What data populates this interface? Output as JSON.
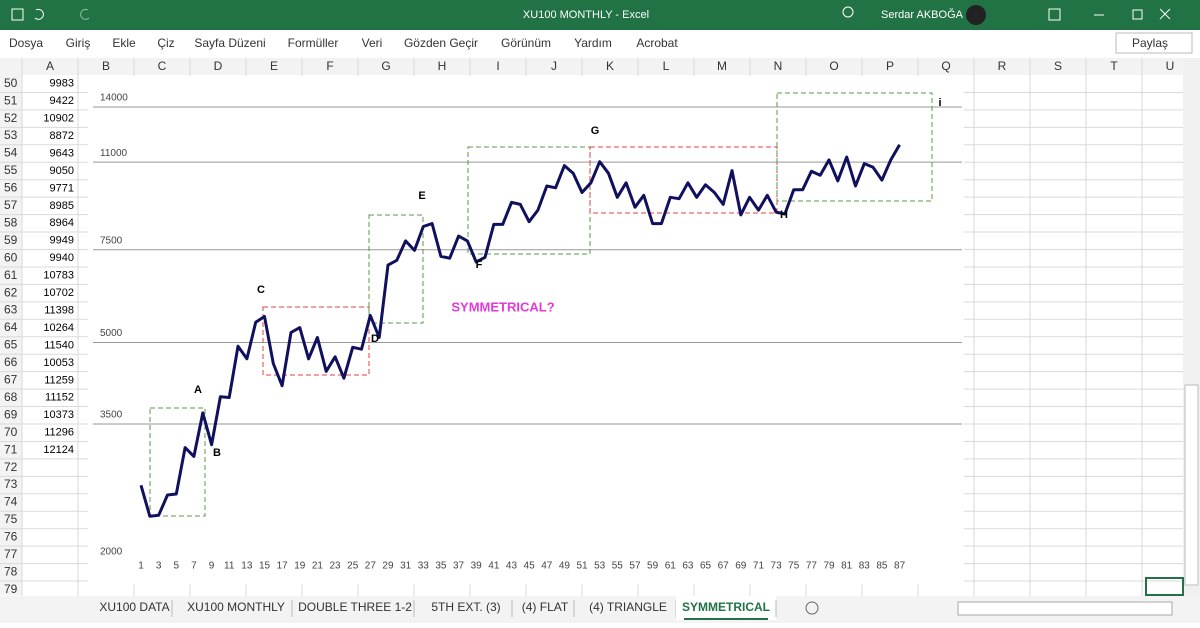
{
  "window": {
    "title": "XU100 MONTHLY  -  Excel",
    "user": "Serdar AKBOĞA"
  },
  "ribbon": {
    "tabs": [
      "Dosya",
      "Giriş",
      "Ekle",
      "Çiz",
      "Sayfa Düzeni",
      "Formüller",
      "Veri",
      "Gözden Geçir",
      "Görünüm",
      "Yardım",
      "Acrobat"
    ],
    "share": "Paylaş"
  },
  "sheet": {
    "columns": [
      "A",
      "B",
      "C",
      "D",
      "E",
      "F",
      "G",
      "H",
      "I",
      "J",
      "K",
      "L",
      "M",
      "N",
      "O",
      "P",
      "Q",
      "R",
      "S",
      "T",
      "U"
    ],
    "row_numbers": [
      50,
      51,
      52,
      53,
      54,
      55,
      56,
      57,
      58,
      59,
      60,
      61,
      62,
      63,
      64,
      65,
      66,
      67,
      68,
      69,
      70,
      71,
      72,
      73,
      74,
      75,
      76,
      77,
      78,
      79
    ],
    "column_a": [
      9983,
      9422,
      10902,
      8872,
      9643,
      9050,
      9771,
      8985,
      8964,
      9949,
      9940,
      10783,
      10702,
      11398,
      10264,
      11540,
      10053,
      11259,
      11152,
      10373,
      11296,
      12124
    ]
  },
  "chart_data": {
    "type": "line",
    "log_scale": true,
    "grid": true,
    "x": [
      1,
      2,
      3,
      4,
      5,
      6,
      7,
      8,
      9,
      10,
      11,
      12,
      13,
      14,
      15,
      16,
      17,
      18,
      19,
      20,
      21,
      22,
      23,
      24,
      25,
      26,
      27,
      28,
      29,
      30,
      31,
      32,
      33,
      34,
      35,
      36,
      37,
      38,
      39,
      40,
      41,
      42,
      43,
      44,
      45,
      46,
      47,
      48,
      49,
      50,
      51,
      52,
      53,
      54,
      55,
      56,
      57,
      58,
      59,
      60,
      61,
      62,
      63,
      64,
      65,
      66,
      67,
      68,
      69,
      70,
      71,
      72,
      73,
      74,
      75,
      76,
      77,
      78,
      79,
      80,
      81,
      82,
      83,
      84,
      85,
      86,
      87
    ],
    "series": [
      {
        "color": "#10105e",
        "values": [
          2677,
          2339,
          2349,
          2566,
          2577,
          3157,
          3038,
          3675,
          3198,
          3945,
          3930,
          4918,
          4656,
          5460,
          5600,
          4561,
          4139,
          5222,
          5335,
          4656,
          5110,
          4406,
          4697,
          4277,
          4896,
          4855,
          5627,
          5110,
          7012,
          7161,
          7796,
          7478,
          8303,
          8408,
          7284,
          7227,
          7962,
          7796,
          7109,
          7255,
          8380,
          8380,
          9225,
          9145,
          8477,
          8918,
          9909,
          9833,
          10837,
          10478,
          9634,
          10051,
          11020,
          10478,
          9432,
          10051,
          9034,
          9515,
          8408,
          8408,
          9432,
          9377,
          10051,
          9432,
          9964,
          9634,
          9145,
          10600,
          8735,
          9432,
          8918,
          9515,
          8843,
          8770,
          9748,
          9748,
          10568,
          10390,
          11110,
          10136,
          11252,
          9909,
          10930,
          10755,
          10170,
          11110,
          11870
        ]
      }
    ],
    "xlim": [
      0.5,
      87.5
    ],
    "xticks": [
      1,
      3,
      5,
      7,
      9,
      11,
      13,
      15,
      17,
      19,
      21,
      23,
      25,
      27,
      29,
      31,
      33,
      35,
      37,
      39,
      41,
      43,
      45,
      47,
      49,
      51,
      53,
      55,
      57,
      59,
      61,
      63,
      65,
      67,
      69,
      71,
      73,
      75,
      77,
      79,
      81,
      83,
      85,
      87
    ],
    "ylim": [
      2000,
      14000
    ],
    "yticks": [
      2000,
      3500,
      5000,
      7500,
      11000,
      14000
    ],
    "annotations": [
      "A",
      "B",
      "C",
      "D",
      "E",
      "F",
      "G",
      "H",
      "i",
      "SYMMETRICAL?"
    ]
  },
  "sheet_tabs": {
    "tabs": [
      "XU100 DATA",
      "XU100 MONTHLY",
      "DOUBLE THREE 1-2",
      "5TH EXT. (3)",
      "(4) FLAT",
      "(4) TRIANGLE",
      "SYMMETRICAL"
    ],
    "active": 6
  }
}
